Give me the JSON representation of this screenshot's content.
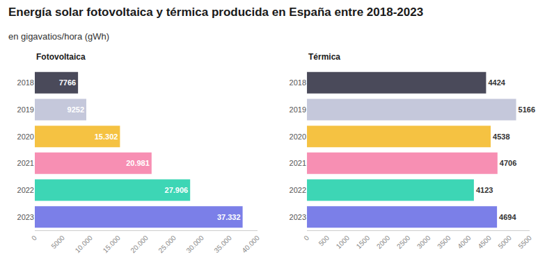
{
  "title": "Energía solar fotovoltaica y térmica producida en España entre 2018-2023",
  "subtitle": "en gigavatios/hora (gWh)",
  "chart_data": [
    {
      "type": "bar",
      "orientation": "horizontal",
      "title": "Fotovoltaica",
      "categories": [
        "2018",
        "2019",
        "2020",
        "2021",
        "2022",
        "2023"
      ],
      "values": [
        7766,
        9252,
        15302,
        20981,
        27906,
        37332
      ],
      "value_labels": [
        "7766",
        "9252",
        "15.302",
        "20.981",
        "27.906",
        "37.332"
      ],
      "colors": [
        "#4a4a5a",
        "#c5c8db",
        "#f5c242",
        "#f78fb3",
        "#3dd6b5",
        "#7b7fe8"
      ],
      "xlim": [
        0,
        40000
      ],
      "xticks": [
        0,
        5000,
        {
          "value": 10000,
          "label": "10.000"
        },
        {
          "value": 15000,
          "label": "15.000"
        },
        {
          "value": 20000,
          "label": "20.000"
        },
        {
          "value": 25000,
          "label": "25.000"
        },
        {
          "value": 30000,
          "label": "30.000"
        },
        {
          "value": 35000,
          "label": "35.000"
        },
        {
          "value": 40000,
          "label": "40.000"
        }
      ],
      "data_labels": true,
      "grid": false
    },
    {
      "type": "bar",
      "orientation": "horizontal",
      "title": "Térmica",
      "categories": [
        "2018",
        "2019",
        "2020",
        "2021",
        "2022",
        "2023"
      ],
      "values": [
        4424,
        5166,
        4538,
        4706,
        4123,
        4694
      ],
      "colors": [
        "#4a4a5a",
        "#c5c8db",
        "#f5c242",
        "#f78fb3",
        "#3dd6b5",
        "#7b7fe8"
      ],
      "xlim": [
        0,
        5500
      ],
      "xticks": [
        0,
        500,
        1000,
        1500,
        2000,
        2500,
        3000,
        3500,
        4000,
        4500,
        5000,
        5500
      ],
      "data_labels": true,
      "grid": false
    }
  ]
}
